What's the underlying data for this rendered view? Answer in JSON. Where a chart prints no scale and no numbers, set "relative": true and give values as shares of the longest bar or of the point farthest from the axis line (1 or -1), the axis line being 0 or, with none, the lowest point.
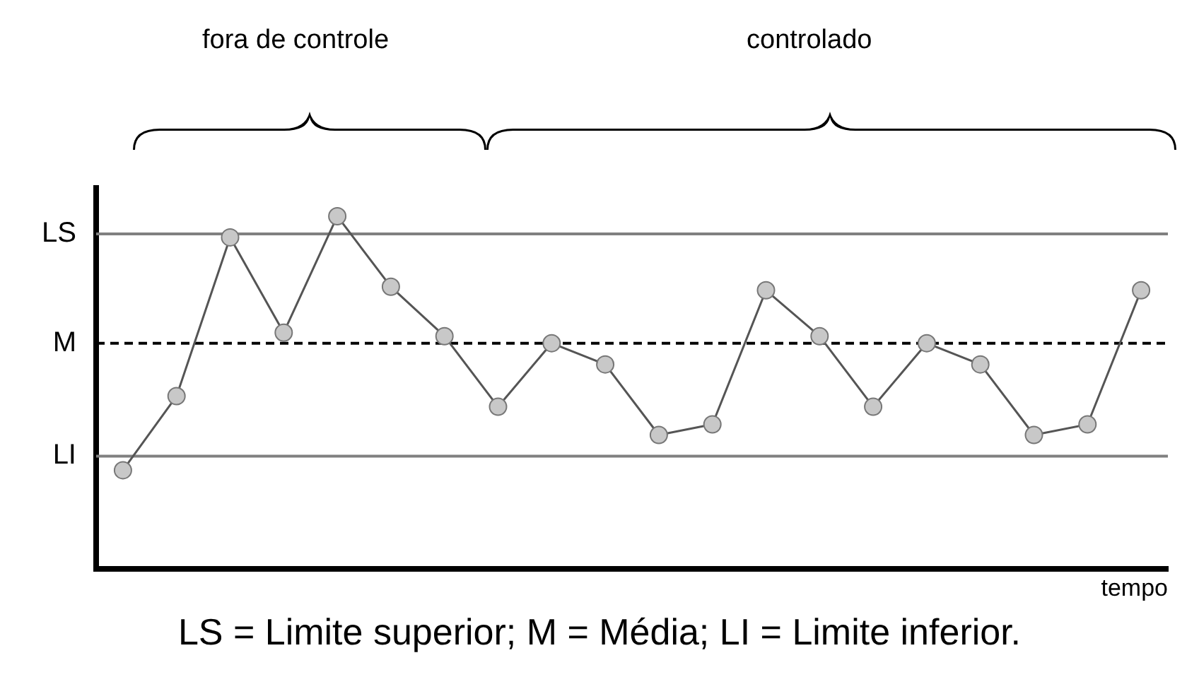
{
  "chart_data": {
    "type": "line",
    "xlabel": "tempo",
    "relative": true,
    "annotations": [
      "fora de controle",
      "controlado",
      "LS = Limite superior; M = Média; LI = Limite inferior."
    ],
    "categories": [
      null,
      null,
      null,
      null,
      null,
      null,
      null,
      null,
      null,
      null,
      null,
      null,
      null,
      null,
      null,
      null,
      null,
      null,
      null,
      null
    ],
    "series": [
      {
        "color": "#555555",
        "values": [
          0.28,
          0.49,
          0.94,
          0.67,
          1.0,
          0.8,
          0.66,
          0.46,
          0.64,
          0.58,
          0.38,
          0.41,
          0.79,
          0.66,
          0.46,
          0.64,
          0.58,
          0.38,
          0.41,
          0.79
        ]
      }
    ],
    "ref_lines": [
      {
        "axis": "y",
        "value": 0.95,
        "label": "LS",
        "color": "#808080",
        "line_style": "solid"
      },
      {
        "axis": "y",
        "value": 0.64,
        "label": "M",
        "color": "#000000",
        "line_style": "dashed"
      },
      {
        "axis": "y",
        "value": 0.32,
        "label": "LI",
        "color": "#808080",
        "line_style": "solid"
      }
    ],
    "legend": false,
    "marker": "circle",
    "line_style": "solid"
  }
}
